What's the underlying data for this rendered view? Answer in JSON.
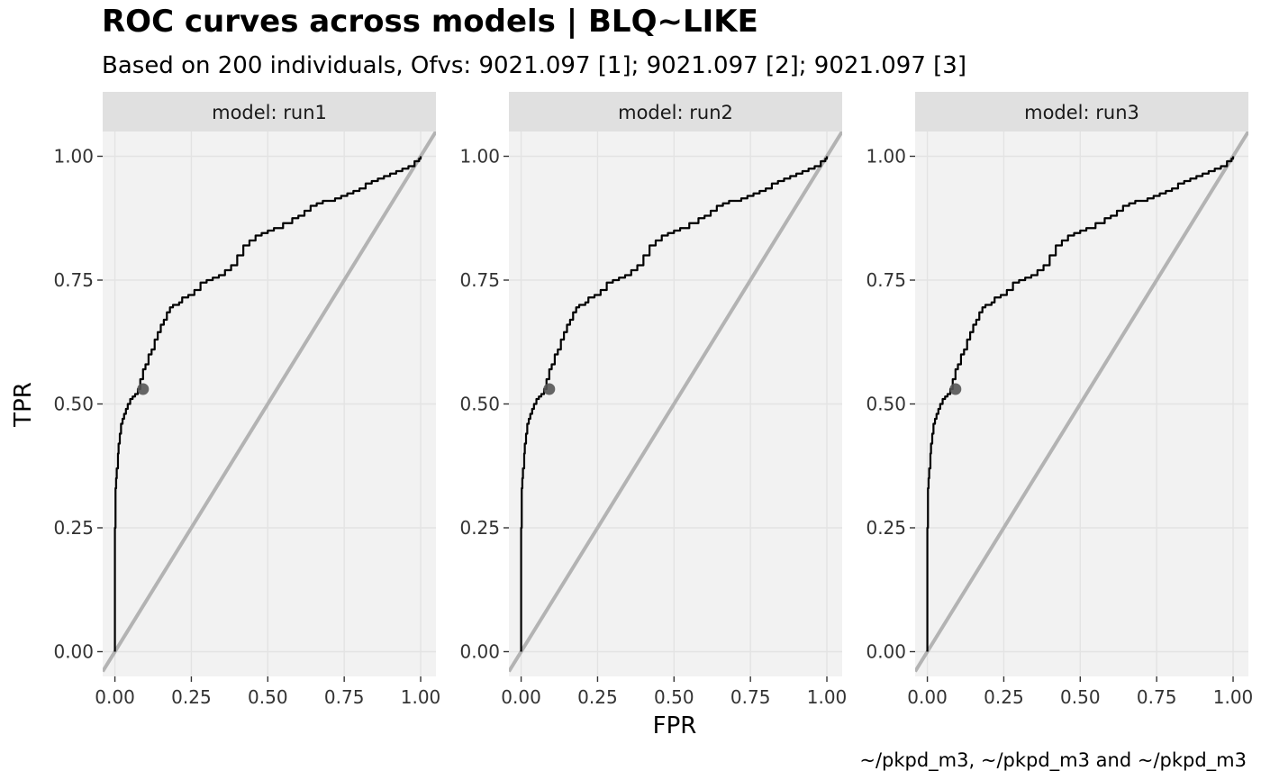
{
  "chart_data": {
    "type": "line",
    "title": "ROC curves across models | BLQ~LIKE",
    "subtitle": "Based on 200 individuals, Ofvs: 9021.097 [1]; 9021.097 [2]; 9021.097 [3]",
    "xlabel": "FPR",
    "ylabel": "TPR",
    "caption": "~/pkpd_m3, ~/pkpd_m3 and ~/pkpd_m3",
    "xlim": [
      -0.04,
      1.05
    ],
    "ylim": [
      -0.05,
      1.05
    ],
    "xticks": [
      0,
      0.25,
      0.5,
      0.75,
      1
    ],
    "xtick_labels": [
      "0.00",
      "0.25",
      "0.50",
      "0.75",
      "1.00"
    ],
    "yticks": [
      0,
      0.25,
      0.5,
      0.75,
      1
    ],
    "ytick_labels": [
      "0.00",
      "0.25",
      "0.50",
      "0.75",
      "1.00"
    ],
    "grid": true,
    "colors": {
      "panel_bg": "#f2f2f2",
      "strip_bg": "#e0e0e0",
      "grid_major": "#e3e3e3",
      "curve": "#000000",
      "diagonal": "#b3b3b3",
      "point": "#555555"
    },
    "facets": [
      {
        "label": "model: run1",
        "roc": {
          "fpr": [
            0,
            0,
            0.002,
            0.004,
            0.006,
            0.01,
            0.012,
            0.016,
            0.02,
            0.025,
            0.03,
            0.036,
            0.042,
            0.05,
            0.058,
            0.066,
            0.075,
            0.083,
            0.092,
            0.1,
            0.11,
            0.12,
            0.13,
            0.14,
            0.15,
            0.16,
            0.17,
            0.18,
            0.19,
            0.2,
            0.21,
            0.22,
            0.24,
            0.26,
            0.28,
            0.3,
            0.32,
            0.34,
            0.36,
            0.38,
            0.4,
            0.42,
            0.44,
            0.46,
            0.48,
            0.5,
            0.52,
            0.55,
            0.58,
            0.6,
            0.62,
            0.64,
            0.66,
            0.68,
            0.7,
            0.72,
            0.74,
            0.76,
            0.78,
            0.8,
            0.82,
            0.84,
            0.86,
            0.88,
            0.9,
            0.92,
            0.94,
            0.96,
            0.98,
            0.995,
            1
          ],
          "tpr": [
            0,
            0.25,
            0.33,
            0.35,
            0.37,
            0.4,
            0.42,
            0.44,
            0.46,
            0.47,
            0.48,
            0.49,
            0.5,
            0.51,
            0.515,
            0.52,
            0.53,
            0.55,
            0.57,
            0.58,
            0.6,
            0.61,
            0.63,
            0.645,
            0.66,
            0.67,
            0.685,
            0.695,
            0.7,
            0.7,
            0.705,
            0.715,
            0.72,
            0.73,
            0.745,
            0.75,
            0.755,
            0.76,
            0.77,
            0.78,
            0.8,
            0.82,
            0.83,
            0.84,
            0.845,
            0.85,
            0.855,
            0.865,
            0.875,
            0.88,
            0.89,
            0.9,
            0.905,
            0.91,
            0.91,
            0.915,
            0.92,
            0.925,
            0.93,
            0.935,
            0.945,
            0.95,
            0.955,
            0.96,
            0.965,
            0.97,
            0.975,
            0.98,
            0.99,
            0.995,
            1
          ]
        },
        "point": {
          "fpr": 0.092,
          "tpr": 0.53
        }
      },
      {
        "label": "model: run2",
        "roc": {
          "fpr": [
            0,
            0,
            0.002,
            0.004,
            0.006,
            0.01,
            0.012,
            0.016,
            0.02,
            0.025,
            0.03,
            0.036,
            0.042,
            0.05,
            0.058,
            0.066,
            0.075,
            0.083,
            0.092,
            0.1,
            0.11,
            0.12,
            0.13,
            0.14,
            0.15,
            0.16,
            0.17,
            0.18,
            0.19,
            0.2,
            0.21,
            0.22,
            0.24,
            0.26,
            0.28,
            0.3,
            0.32,
            0.34,
            0.36,
            0.38,
            0.4,
            0.42,
            0.44,
            0.46,
            0.48,
            0.5,
            0.52,
            0.55,
            0.58,
            0.6,
            0.62,
            0.64,
            0.66,
            0.68,
            0.7,
            0.72,
            0.74,
            0.76,
            0.78,
            0.8,
            0.82,
            0.84,
            0.86,
            0.88,
            0.9,
            0.92,
            0.94,
            0.96,
            0.98,
            0.995,
            1
          ],
          "tpr": [
            0,
            0.25,
            0.33,
            0.35,
            0.37,
            0.4,
            0.42,
            0.44,
            0.46,
            0.47,
            0.48,
            0.49,
            0.5,
            0.51,
            0.515,
            0.52,
            0.53,
            0.55,
            0.57,
            0.58,
            0.6,
            0.61,
            0.63,
            0.645,
            0.66,
            0.67,
            0.685,
            0.695,
            0.7,
            0.7,
            0.705,
            0.715,
            0.72,
            0.73,
            0.745,
            0.75,
            0.755,
            0.76,
            0.77,
            0.78,
            0.8,
            0.82,
            0.83,
            0.84,
            0.845,
            0.85,
            0.855,
            0.865,
            0.875,
            0.88,
            0.89,
            0.9,
            0.905,
            0.91,
            0.91,
            0.915,
            0.92,
            0.925,
            0.93,
            0.935,
            0.945,
            0.95,
            0.955,
            0.96,
            0.965,
            0.97,
            0.975,
            0.98,
            0.99,
            0.995,
            1
          ]
        },
        "point": {
          "fpr": 0.092,
          "tpr": 0.53
        }
      },
      {
        "label": "model: run3",
        "roc": {
          "fpr": [
            0,
            0,
            0.002,
            0.004,
            0.006,
            0.01,
            0.012,
            0.016,
            0.02,
            0.025,
            0.03,
            0.036,
            0.042,
            0.05,
            0.058,
            0.066,
            0.075,
            0.083,
            0.092,
            0.1,
            0.11,
            0.12,
            0.13,
            0.14,
            0.15,
            0.16,
            0.17,
            0.18,
            0.19,
            0.2,
            0.21,
            0.22,
            0.24,
            0.26,
            0.28,
            0.3,
            0.32,
            0.34,
            0.36,
            0.38,
            0.4,
            0.42,
            0.44,
            0.46,
            0.48,
            0.5,
            0.52,
            0.55,
            0.58,
            0.6,
            0.62,
            0.64,
            0.66,
            0.68,
            0.7,
            0.72,
            0.74,
            0.76,
            0.78,
            0.8,
            0.82,
            0.84,
            0.86,
            0.88,
            0.9,
            0.92,
            0.94,
            0.96,
            0.98,
            0.995,
            1
          ],
          "tpr": [
            0,
            0.25,
            0.33,
            0.35,
            0.37,
            0.4,
            0.42,
            0.44,
            0.46,
            0.47,
            0.48,
            0.49,
            0.5,
            0.51,
            0.515,
            0.52,
            0.53,
            0.55,
            0.57,
            0.58,
            0.6,
            0.61,
            0.63,
            0.645,
            0.66,
            0.67,
            0.685,
            0.695,
            0.7,
            0.7,
            0.705,
            0.715,
            0.72,
            0.73,
            0.745,
            0.75,
            0.755,
            0.76,
            0.77,
            0.78,
            0.8,
            0.82,
            0.83,
            0.84,
            0.845,
            0.85,
            0.855,
            0.865,
            0.875,
            0.88,
            0.89,
            0.9,
            0.905,
            0.91,
            0.91,
            0.915,
            0.92,
            0.925,
            0.93,
            0.935,
            0.945,
            0.95,
            0.955,
            0.96,
            0.965,
            0.97,
            0.975,
            0.98,
            0.99,
            0.995,
            1
          ]
        },
        "point": {
          "fpr": 0.092,
          "tpr": 0.53
        }
      }
    ]
  }
}
